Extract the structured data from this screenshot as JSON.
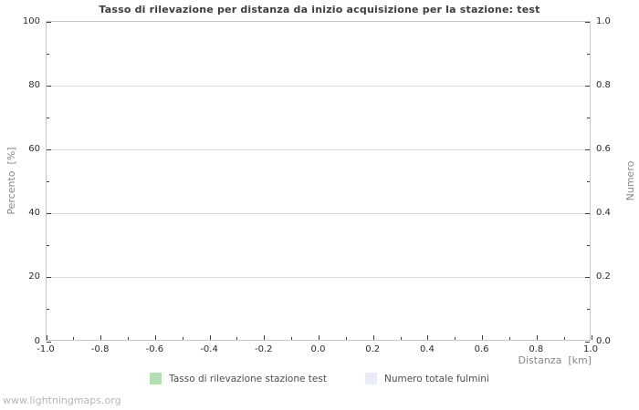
{
  "watermark": "www.lightningmaps.org",
  "colors": {
    "background": "#ffffff",
    "frame": "#c6c6c6",
    "gridline": "#dcdcdc",
    "tick": "#3f3f3f",
    "tick_label": "#2b2b2b",
    "title": "#3c3c3c",
    "axis_label": "#878787",
    "legend_text": "#4f4f4f",
    "watermark": "#b5b5b5",
    "series_green": "#b4dfb4",
    "series_lavender": "#eaedf9"
  },
  "chart_data": {
    "type": "bar",
    "title": "Tasso di rilevazione per distanza da inizio acquisizione per la stazione: test",
    "xlabel": "Distanza  [km]",
    "ylabel_left": "Percento  [%]",
    "ylabel_right": "Numero",
    "xlim": [
      -1.0,
      1.0
    ],
    "ylim_left": [
      0,
      100
    ],
    "ylim_right": [
      0.0,
      1.0
    ],
    "x_ticks": [
      -1.0,
      -0.8,
      -0.6,
      -0.4,
      -0.2,
      0.0,
      0.2,
      0.4,
      0.6,
      0.8,
      1.0
    ],
    "x_tick_labels": [
      "-1.0",
      "-0.8",
      "-0.6",
      "-0.4",
      "-0.2",
      "0.0",
      "0.2",
      "0.4",
      "0.6",
      "0.8",
      "1.0"
    ],
    "y_ticks_left": [
      0,
      20,
      40,
      60,
      80,
      100
    ],
    "y_tick_labels_left": [
      "0",
      "20",
      "40",
      "60",
      "80",
      "100"
    ],
    "y_ticks_right": [
      0.0,
      0.2,
      0.4,
      0.6,
      0.8,
      1.0
    ],
    "y_tick_labels_right": [
      "0.0",
      "0.2",
      "0.4",
      "0.6",
      "0.8",
      "1.0"
    ],
    "grid": true,
    "legend_position": "bottom",
    "series": [
      {
        "name": "Tasso di rilevazione stazione test",
        "color": "#b4dfb4",
        "axis": "left",
        "values": []
      },
      {
        "name": "Numero totale fulmini",
        "color": "#eaedf9",
        "axis": "right",
        "values": []
      }
    ]
  }
}
